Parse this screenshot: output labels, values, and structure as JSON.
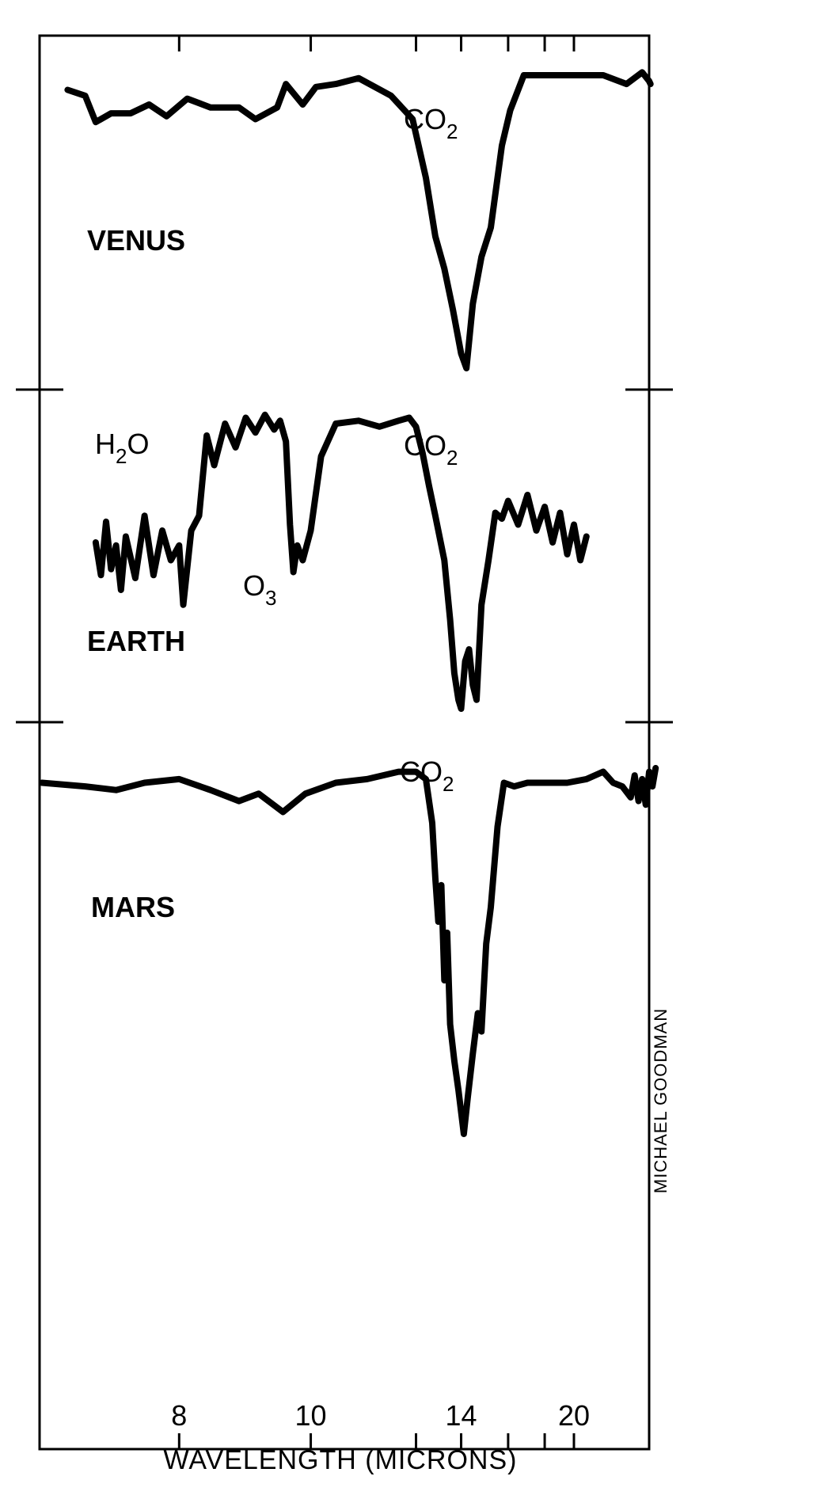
{
  "chart_data": {
    "type": "line",
    "xlabel": "WAVELENGTH (MICRONS)",
    "x_scale": "reciprocal",
    "xlim": [
      6.6,
      28
    ],
    "x_ticks": [
      8,
      10,
      14,
      20
    ],
    "x_tick_labels": [
      "8",
      "10",
      "14",
      "20"
    ],
    "x_minor_ticks": [
      8,
      10,
      12.5,
      14,
      16,
      18,
      20
    ],
    "ylabel": "",
    "y_units": "relative intensity (0 = deepest, 1 = highest)",
    "credit": "MICHAEL GOODMAN",
    "series": [
      {
        "name": "VENUS",
        "annotations": [
          {
            "text": "CO",
            "sub": "2"
          }
        ],
        "points": [
          [
            6.84,
            0.95
          ],
          [
            7.0,
            0.93
          ],
          [
            7.1,
            0.84
          ],
          [
            7.25,
            0.87
          ],
          [
            7.45,
            0.87
          ],
          [
            7.65,
            0.9
          ],
          [
            7.85,
            0.86
          ],
          [
            8.1,
            0.92
          ],
          [
            8.4,
            0.89
          ],
          [
            8.8,
            0.89
          ],
          [
            9.05,
            0.85
          ],
          [
            9.4,
            0.89
          ],
          [
            9.55,
            0.97
          ],
          [
            9.85,
            0.9
          ],
          [
            10.1,
            0.96
          ],
          [
            10.5,
            0.97
          ],
          [
            11.0,
            0.99
          ],
          [
            11.8,
            0.93
          ],
          [
            12.4,
            0.85
          ],
          [
            12.8,
            0.65
          ],
          [
            13.1,
            0.45
          ],
          [
            13.4,
            0.34
          ],
          [
            13.7,
            0.2
          ],
          [
            14.0,
            0.05
          ],
          [
            14.2,
            0.0
          ],
          [
            14.45,
            0.22
          ],
          [
            14.8,
            0.38
          ],
          [
            15.2,
            0.48
          ],
          [
            15.7,
            0.76
          ],
          [
            16.1,
            0.88
          ],
          [
            16.8,
            1.0
          ],
          [
            18.0,
            1.0
          ],
          [
            20.0,
            1.0
          ],
          [
            22.5,
            1.0
          ],
          [
            25.0,
            0.97
          ],
          [
            27.0,
            1.01
          ],
          [
            28.0,
            0.98
          ],
          [
            28.2,
            0.97
          ]
        ]
      },
      {
        "name": "EARTH",
        "annotations": [
          {
            "text": "H",
            "sub": "2",
            "text2": "O"
          },
          {
            "text": "O",
            "sub": "3"
          },
          {
            "text": "CO",
            "sub": "2"
          }
        ],
        "points": [
          [
            7.1,
            0.56
          ],
          [
            7.15,
            0.45
          ],
          [
            7.2,
            0.63
          ],
          [
            7.25,
            0.47
          ],
          [
            7.3,
            0.55
          ],
          [
            7.35,
            0.4
          ],
          [
            7.4,
            0.58
          ],
          [
            7.5,
            0.44
          ],
          [
            7.6,
            0.65
          ],
          [
            7.7,
            0.45
          ],
          [
            7.8,
            0.6
          ],
          [
            7.9,
            0.5
          ],
          [
            8.0,
            0.55
          ],
          [
            8.05,
            0.35
          ],
          [
            8.15,
            0.6
          ],
          [
            8.25,
            0.65
          ],
          [
            8.35,
            0.92
          ],
          [
            8.45,
            0.82
          ],
          [
            8.6,
            0.96
          ],
          [
            8.75,
            0.88
          ],
          [
            8.9,
            0.98
          ],
          [
            9.05,
            0.93
          ],
          [
            9.2,
            0.99
          ],
          [
            9.35,
            0.94
          ],
          [
            9.45,
            0.97
          ],
          [
            9.55,
            0.9
          ],
          [
            9.62,
            0.62
          ],
          [
            9.68,
            0.46
          ],
          [
            9.75,
            0.55
          ],
          [
            9.85,
            0.5
          ],
          [
            10.0,
            0.6
          ],
          [
            10.2,
            0.85
          ],
          [
            10.5,
            0.96
          ],
          [
            11.0,
            0.97
          ],
          [
            11.5,
            0.95
          ],
          [
            12.0,
            0.97
          ],
          [
            12.3,
            0.98
          ],
          [
            12.5,
            0.95
          ],
          [
            12.7,
            0.86
          ],
          [
            12.9,
            0.75
          ],
          [
            13.1,
            0.65
          ],
          [
            13.4,
            0.5
          ],
          [
            13.6,
            0.3
          ],
          [
            13.75,
            0.12
          ],
          [
            13.9,
            0.03
          ],
          [
            14.0,
            0.0
          ],
          [
            14.15,
            0.16
          ],
          [
            14.3,
            0.2
          ],
          [
            14.45,
            0.08
          ],
          [
            14.6,
            0.03
          ],
          [
            14.8,
            0.35
          ],
          [
            15.1,
            0.5
          ],
          [
            15.4,
            0.66
          ],
          [
            15.7,
            0.64
          ],
          [
            16.0,
            0.7
          ],
          [
            16.5,
            0.62
          ],
          [
            17.0,
            0.72
          ],
          [
            17.5,
            0.6
          ],
          [
            18.0,
            0.68
          ],
          [
            18.5,
            0.56
          ],
          [
            19.0,
            0.66
          ],
          [
            19.5,
            0.52
          ],
          [
            20.0,
            0.62
          ],
          [
            20.5,
            0.5
          ],
          [
            21.0,
            0.58
          ]
        ]
      },
      {
        "name": "MARS",
        "annotations": [
          {
            "text": "CO",
            "sub": "2"
          }
        ],
        "points": [
          [
            6.62,
            0.96
          ],
          [
            7.0,
            0.95
          ],
          [
            7.3,
            0.94
          ],
          [
            7.6,
            0.96
          ],
          [
            8.0,
            0.97
          ],
          [
            8.4,
            0.94
          ],
          [
            8.8,
            0.91
          ],
          [
            9.1,
            0.93
          ],
          [
            9.5,
            0.88
          ],
          [
            9.9,
            0.93
          ],
          [
            10.5,
            0.96
          ],
          [
            11.2,
            0.97
          ],
          [
            12.0,
            0.99
          ],
          [
            12.5,
            0.99
          ],
          [
            12.8,
            0.97
          ],
          [
            13.0,
            0.85
          ],
          [
            13.1,
            0.7
          ],
          [
            13.2,
            0.58
          ],
          [
            13.3,
            0.68
          ],
          [
            13.4,
            0.42
          ],
          [
            13.5,
            0.55
          ],
          [
            13.6,
            0.3
          ],
          [
            13.75,
            0.2
          ],
          [
            13.9,
            0.12
          ],
          [
            14.0,
            0.06
          ],
          [
            14.1,
            0.0
          ],
          [
            14.25,
            0.1
          ],
          [
            14.45,
            0.22
          ],
          [
            14.65,
            0.33
          ],
          [
            14.8,
            0.28
          ],
          [
            15.0,
            0.52
          ],
          [
            15.2,
            0.62
          ],
          [
            15.5,
            0.84
          ],
          [
            15.8,
            0.96
          ],
          [
            16.3,
            0.95
          ],
          [
            17.0,
            0.96
          ],
          [
            18.0,
            0.96
          ],
          [
            19.5,
            0.96
          ],
          [
            21.0,
            0.97
          ],
          [
            22.5,
            0.99
          ],
          [
            23.5,
            0.96
          ],
          [
            24.5,
            0.95
          ],
          [
            25.5,
            0.92
          ],
          [
            26.0,
            0.98
          ],
          [
            26.5,
            0.91
          ],
          [
            27.0,
            0.97
          ],
          [
            27.5,
            0.9
          ],
          [
            28.0,
            0.99
          ],
          [
            28.5,
            0.95
          ],
          [
            29.0,
            1.0
          ]
        ]
      }
    ]
  }
}
